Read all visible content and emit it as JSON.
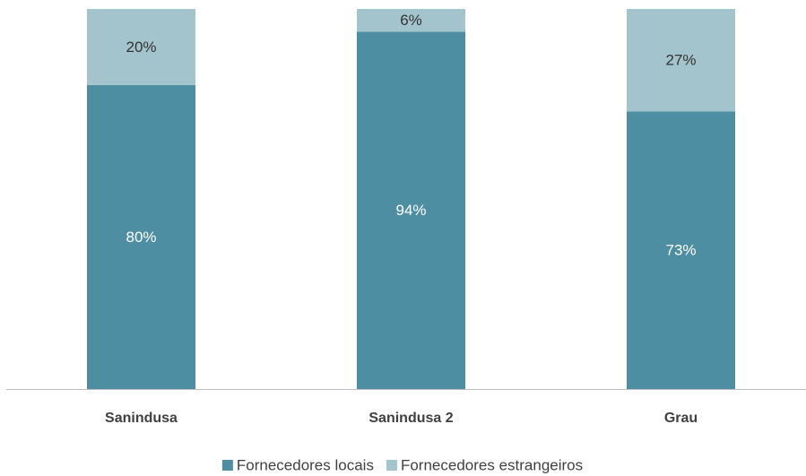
{
  "chart_data": {
    "type": "stacked_bar",
    "categories": [
      "Sanindusa",
      "Sanindusa 2",
      "Grau"
    ],
    "series": [
      {
        "name": "Fornecedores locais",
        "color": "#4e8ea2",
        "values": [
          80,
          94,
          73
        ],
        "value_labels": [
          "80%",
          "94%",
          "73%"
        ]
      },
      {
        "name": "Fornecedores estrangeiros",
        "color": "#a3c4cc",
        "values": [
          20,
          6,
          27
        ],
        "value_labels": [
          "20%",
          "6%",
          "27%"
        ]
      }
    ],
    "ylim": [
      0,
      100
    ],
    "legend": "bottom"
  }
}
